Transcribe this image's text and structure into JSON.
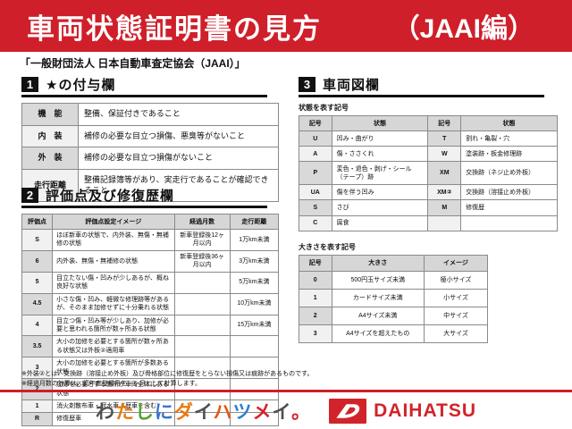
{
  "colors": {
    "accent_red": "#cf1f2a",
    "brand_red": "#d2232a",
    "badge_black": "#111111",
    "header_gray": "#d6d6d6"
  },
  "banner": {
    "title": "車両状態証明書の見方",
    "edition": "（JAAI編）"
  },
  "subtitle": "「一般財団法人 日本自動車査定協会（JAAI）」",
  "section1": {
    "number": "1",
    "title": "★の付与欄",
    "rows": [
      [
        "機　能",
        "整備、保証付きであること"
      ],
      [
        "内　装",
        "補修の必要な目立つ損傷、悪臭等がないこと"
      ],
      [
        "外　装",
        "補修の必要な目立つ損傷がないこと"
      ],
      [
        "走行距離",
        "整備記録簿等があり、実走行であることが確認できること"
      ]
    ]
  },
  "section2": {
    "number": "2",
    "title": "評価点及び修復歴欄",
    "headers": [
      "評価点",
      "評価点設定イメージ",
      "経過月数",
      "走行距離"
    ],
    "rows": [
      [
        "S",
        "ほぼ新車の状態で、内外装、無傷・無補修の状態",
        "新車登録後12ヶ月以内",
        "1万km未満"
      ],
      [
        "6",
        "内外装、無傷・無補修の状態",
        "新車登録後36ヶ月以内",
        "3万km未満"
      ],
      [
        "5",
        "目立たない傷・凹みが少しあるが、概ね良好な状態",
        "",
        "5万km未満"
      ],
      [
        "4.5",
        "小さな傷・凹み、軽微な修理跡等があるが、そのまま加修せずに十分乗れる状態",
        "",
        "10万km未満"
      ],
      [
        "4",
        "目立つ傷・凹み等が少しあり、加修が必要と思われる箇所が数ヶ所ある状態",
        "",
        "15万km未満"
      ],
      [
        "3.5",
        "大小の加修を必要とする箇所が数ヶ所ある状態又は外板②適用車",
        "",
        ""
      ],
      [
        "3",
        "大小の加修を必要とする箇所が多数ある状態",
        "",
        ""
      ],
      [
        "2",
        "加修を必要とする箇所が車両全体にある状態",
        "",
        ""
      ],
      [
        "1",
        "消火剤散布車・冠水車（歴車を含む）",
        "",
        ""
      ],
      [
        "R",
        "修復歴車",
        "",
        ""
      ]
    ]
  },
  "section3": {
    "number": "3",
    "title": "車両図欄",
    "state_table": {
      "label": "状態を表す記号",
      "headers": [
        "記号",
        "状態",
        "記号",
        "状態"
      ],
      "rows": [
        [
          "U",
          "凹み・曲がり",
          "T",
          "割れ・亀裂・穴"
        ],
        [
          "A",
          "傷・ささくれ",
          "W",
          "塗装跡・板金修理跡"
        ],
        [
          "P",
          "変色・退色・剥げ・シール（テープ）跡",
          "XM",
          "交換跡（ネジ止め外板）"
        ],
        [
          "UA",
          "傷を伴う凹み",
          "XM②",
          "交換跡（溶接止め外板）"
        ],
        [
          "S",
          "さび",
          "M",
          "修復歴"
        ],
        [
          "C",
          "腐食",
          "",
          ""
        ]
      ]
    },
    "size_table": {
      "label": "大きさを表す記号",
      "headers": [
        "記号",
        "大きさ",
        "イメージ"
      ],
      "rows": [
        [
          "0",
          "500円玉サイズ未満",
          "極小サイズ"
        ],
        [
          "1",
          "カードサイズ未満",
          "小サイズ"
        ],
        [
          "2",
          "A4サイズ未満",
          "中サイズ"
        ],
        [
          "3",
          "A4サイズを超えたもの",
          "大サイズ"
        ]
      ]
    }
  },
  "footnotes": [
    "※外装②とは、交換跡（溶接止め外板）及び骨格部位に修復歴をとらない損傷又は痕跡があるものです。",
    "※経過月数の計算は、初年度登録月を一ヶ月として計算します。"
  ],
  "footer": {
    "tagline": "わたしにダイハツメイ。",
    "tagline_chars": [
      {
        "ch": "わ",
        "color": "#4f4f4f"
      },
      {
        "ch": "た",
        "color": "#e8790f"
      },
      {
        "ch": "し",
        "color": "#55a32f"
      },
      {
        "ch": "に",
        "color": "#3a74c9"
      },
      {
        "ch": "ダ",
        "color": "#e8790f"
      },
      {
        "ch": "イ",
        "color": "#4f4f4f"
      },
      {
        "ch": "ハ",
        "color": "#e8560f"
      },
      {
        "ch": "ツ",
        "color": "#2f7fd0"
      },
      {
        "ch": "メ",
        "color": "#d2232a"
      },
      {
        "ch": "イ",
        "color": "#4f4f4f"
      },
      {
        "ch": "。",
        "color": "#d2232a"
      }
    ],
    "brand": "DAIHATSU"
  }
}
